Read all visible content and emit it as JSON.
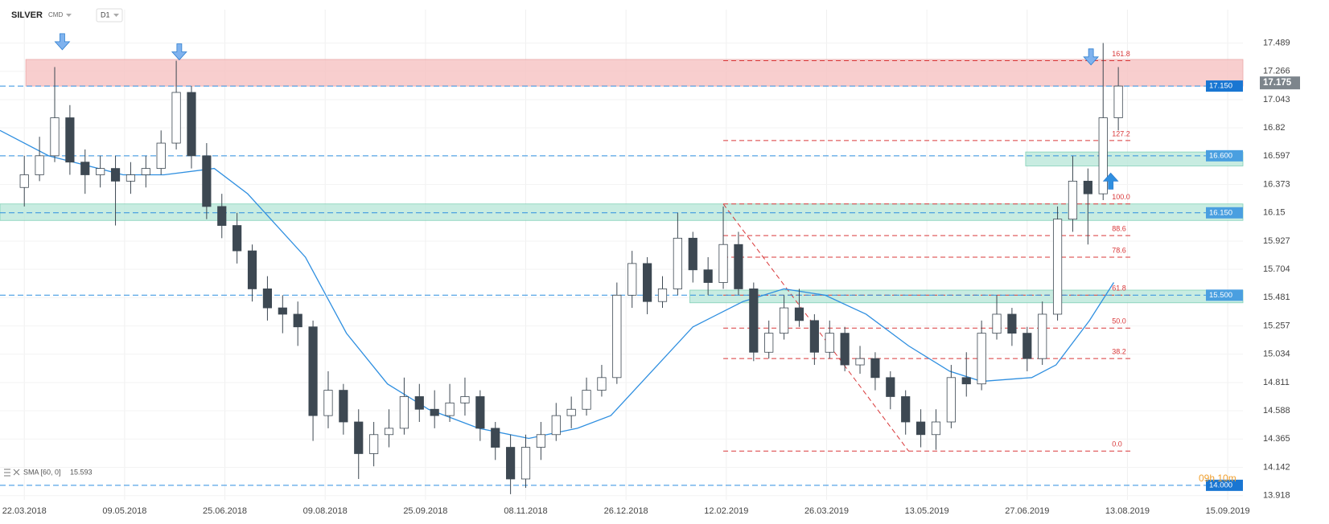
{
  "chart_data": {
    "type": "candlestick",
    "symbol": "SILVER",
    "market": "CMD",
    "interval": "D1",
    "countdown": "09h 10m",
    "up_color": "#ffffff",
    "down_color": "#3d4852",
    "open": [
      16.35,
      16.45,
      16.6,
      16.9,
      16.55,
      16.45,
      16.5,
      16.4,
      16.45,
      16.5,
      16.7,
      17.1,
      16.6,
      16.2,
      16.05,
      15.85,
      15.55,
      15.4,
      15.35,
      15.25,
      14.55,
      14.75,
      14.5,
      14.25,
      14.4,
      14.45,
      14.7,
      14.6,
      14.55,
      14.65,
      14.7,
      14.45,
      14.3,
      14.05,
      14.3,
      14.4,
      14.55,
      14.6,
      14.75,
      14.85,
      15.5,
      15.75,
      15.45,
      15.55,
      15.95,
      15.7,
      15.6,
      15.9,
      15.55,
      15.05,
      15.2,
      15.4,
      15.3,
      15.05,
      15.2,
      14.95,
      15.0,
      14.85,
      14.7,
      14.5,
      14.4,
      14.5,
      14.85,
      14.8,
      15.2,
      15.35,
      15.2,
      15.0,
      15.35,
      16.1,
      16.4,
      16.3,
      16.9
    ],
    "high": [
      16.6,
      16.75,
      17.3,
      17.0,
      16.65,
      16.6,
      16.6,
      16.55,
      16.6,
      16.8,
      17.35,
      17.15,
      16.7,
      16.3,
      16.15,
      15.9,
      15.65,
      15.5,
      15.45,
      15.3,
      14.9,
      14.8,
      14.6,
      14.5,
      14.6,
      14.85,
      14.8,
      14.75,
      14.8,
      14.85,
      14.75,
      14.5,
      14.4,
      14.4,
      14.5,
      14.65,
      14.7,
      14.85,
      14.95,
      15.6,
      15.85,
      15.8,
      15.65,
      16.15,
      16.0,
      15.8,
      16.2,
      16.0,
      15.6,
      15.3,
      15.5,
      15.55,
      15.35,
      15.3,
      15.25,
      15.1,
      15.05,
      14.9,
      14.75,
      14.6,
      14.6,
      14.95,
      15.05,
      15.3,
      15.5,
      15.4,
      15.25,
      15.45,
      16.2,
      16.6,
      16.5,
      17.49,
      17.3
    ],
    "low": [
      16.2,
      16.4,
      16.55,
      16.45,
      16.3,
      16.35,
      16.05,
      16.3,
      16.35,
      16.45,
      16.65,
      16.5,
      16.1,
      15.95,
      15.75,
      15.45,
      15.3,
      15.2,
      15.1,
      14.35,
      14.45,
      14.4,
      14.05,
      14.15,
      14.3,
      14.4,
      14.5,
      14.45,
      14.5,
      14.55,
      14.35,
      14.2,
      13.93,
      13.98,
      14.2,
      14.35,
      14.45,
      14.55,
      14.7,
      14.8,
      15.4,
      15.35,
      15.4,
      15.5,
      15.6,
      15.5,
      15.55,
      15.5,
      14.98,
      15.0,
      15.15,
      15.25,
      14.95,
      15.0,
      14.9,
      14.88,
      14.75,
      14.6,
      14.4,
      14.3,
      14.28,
      14.45,
      14.7,
      14.75,
      15.15,
      15.1,
      14.9,
      14.95,
      15.3,
      16.0,
      15.9,
      16.25,
      16.8
    ],
    "close": [
      16.45,
      16.6,
      16.9,
      16.55,
      16.45,
      16.5,
      16.4,
      16.45,
      16.5,
      16.7,
      17.1,
      16.6,
      16.2,
      16.05,
      15.85,
      15.55,
      15.4,
      15.35,
      15.25,
      14.55,
      14.75,
      14.5,
      14.25,
      14.4,
      14.45,
      14.7,
      14.6,
      14.55,
      14.65,
      14.7,
      14.45,
      14.3,
      14.05,
      14.3,
      14.4,
      14.55,
      14.6,
      14.75,
      14.85,
      15.5,
      15.75,
      15.45,
      15.55,
      15.95,
      15.7,
      15.6,
      15.9,
      15.55,
      15.05,
      15.2,
      15.4,
      15.3,
      15.05,
      15.2,
      14.95,
      15.0,
      14.85,
      14.7,
      14.5,
      14.4,
      14.5,
      14.85,
      14.8,
      15.2,
      15.35,
      15.2,
      15.0,
      15.35,
      16.1,
      16.4,
      16.3,
      16.9,
      17.15
    ],
    "xlim": [
      -1.6,
      80.2
    ],
    "xticks": [
      {
        "value": 0,
        "label": "22.03.2018"
      },
      {
        "value": 6.6,
        "label": "09.05.2018"
      },
      {
        "value": 13.2,
        "label": "25.06.2018"
      },
      {
        "value": 19.8,
        "label": "09.08.2018"
      },
      {
        "value": 26.4,
        "label": "25.09.2018"
      },
      {
        "value": 33,
        "label": "08.11.2018"
      },
      {
        "value": 39.6,
        "label": "26.12.2018"
      },
      {
        "value": 46.2,
        "label": "12.02.2019"
      },
      {
        "value": 52.8,
        "label": "26.03.2019"
      },
      {
        "value": 59.4,
        "label": "13.05.2019"
      },
      {
        "value": 66,
        "label": "27.06.2019"
      },
      {
        "value": 72.6,
        "label": "13.08.2019"
      },
      {
        "value": 79.2,
        "label": "15.09.2019"
      }
    ],
    "ylim": [
      13.885,
      17.753
    ],
    "yticks": [
      17.489,
      17.266,
      17.043,
      16.82,
      16.597,
      16.373,
      16.15,
      15.927,
      15.704,
      15.481,
      15.257,
      15.034,
      14.811,
      14.588,
      14.365,
      14.142,
      13.918
    ],
    "current_price": 17.175,
    "sma": {
      "name": "SMA [60, 0]",
      "last": 15.593,
      "color": "#2f8fe0",
      "x": [
        -1.6,
        1.6,
        6.5,
        9.2,
        12.5,
        14.7,
        18.5,
        21.2,
        23.9,
        26.6,
        29.9,
        33.2,
        36.4,
        38.6,
        41.3,
        44,
        47.3,
        50,
        52.7,
        55.4,
        58.2,
        60.9,
        63,
        66.3,
        67.9,
        70.1,
        71.7
      ],
      "values": [
        16.8,
        16.6,
        16.45,
        16.45,
        16.5,
        16.3,
        15.8,
        15.2,
        14.8,
        14.6,
        14.45,
        14.37,
        14.45,
        14.55,
        14.9,
        15.25,
        15.45,
        15.55,
        15.5,
        15.35,
        15.1,
        14.9,
        14.82,
        14.85,
        14.95,
        15.3,
        15.6
      ]
    },
    "levels": [
      {
        "value": 17.15,
        "label": "17.150"
      },
      {
        "value": 16.6,
        "label": "16.600"
      },
      {
        "value": 16.15,
        "label": "16.150"
      },
      {
        "value": 15.5,
        "label": "15.500"
      },
      {
        "value": 14,
        "label": "14.000"
      }
    ],
    "level_color": "#2f8fe0",
    "zones": [
      {
        "from": 0.1,
        "to": 80.2,
        "low": 17.15,
        "high": 17.36,
        "color": "#f7c6c6"
      },
      {
        "from": 65.9,
        "to": 80.2,
        "low": 16.52,
        "high": 16.63,
        "color": "#bfe9dc"
      },
      {
        "from": -1.6,
        "to": 80.2,
        "low": 16.09,
        "high": 16.22,
        "color": "#bfe9dc"
      },
      {
        "from": 43.8,
        "to": 80.2,
        "low": 15.44,
        "high": 15.54,
        "color": "#bfe9dc"
      }
    ],
    "fib": {
      "color": "#d9383a",
      "from": 46,
      "to": 72.8,
      "levels": [
        {
          "price": 17.35,
          "ratio": 161.8
        },
        {
          "price": 16.72,
          "ratio": 127.2
        },
        {
          "price": 16.22,
          "ratio": {
            "value": 100,
            "label": "100.0"
          }
        },
        {
          "price": 15.97,
          "ratio": 88.6
        },
        {
          "price": 15.8,
          "ratio": 78.6
        },
        {
          "price": 15.5,
          "ratio": 61.8
        },
        {
          "price": 15.24,
          "ratio": {
            "value": 50,
            "label": "50.0"
          }
        },
        {
          "price": 15.0,
          "ratio": 38.2
        },
        {
          "price": 14.27,
          "ratio": {
            "value": 0,
            "label": "0.0"
          }
        }
      ],
      "diagonal": {
        "x": [
          46,
          58.2
        ],
        "values": [
          16.22,
          14.27
        ]
      }
    },
    "arrows": [
      {
        "direction": "down",
        "x": 2.5,
        "y": 17.5
      },
      {
        "direction": "down",
        "x": 10.2,
        "y": 17.42
      },
      {
        "direction": "down",
        "x": 70.2,
        "y": 17.38
      },
      {
        "direction": "up",
        "x": 71.5,
        "y": 16.4
      }
    ]
  }
}
